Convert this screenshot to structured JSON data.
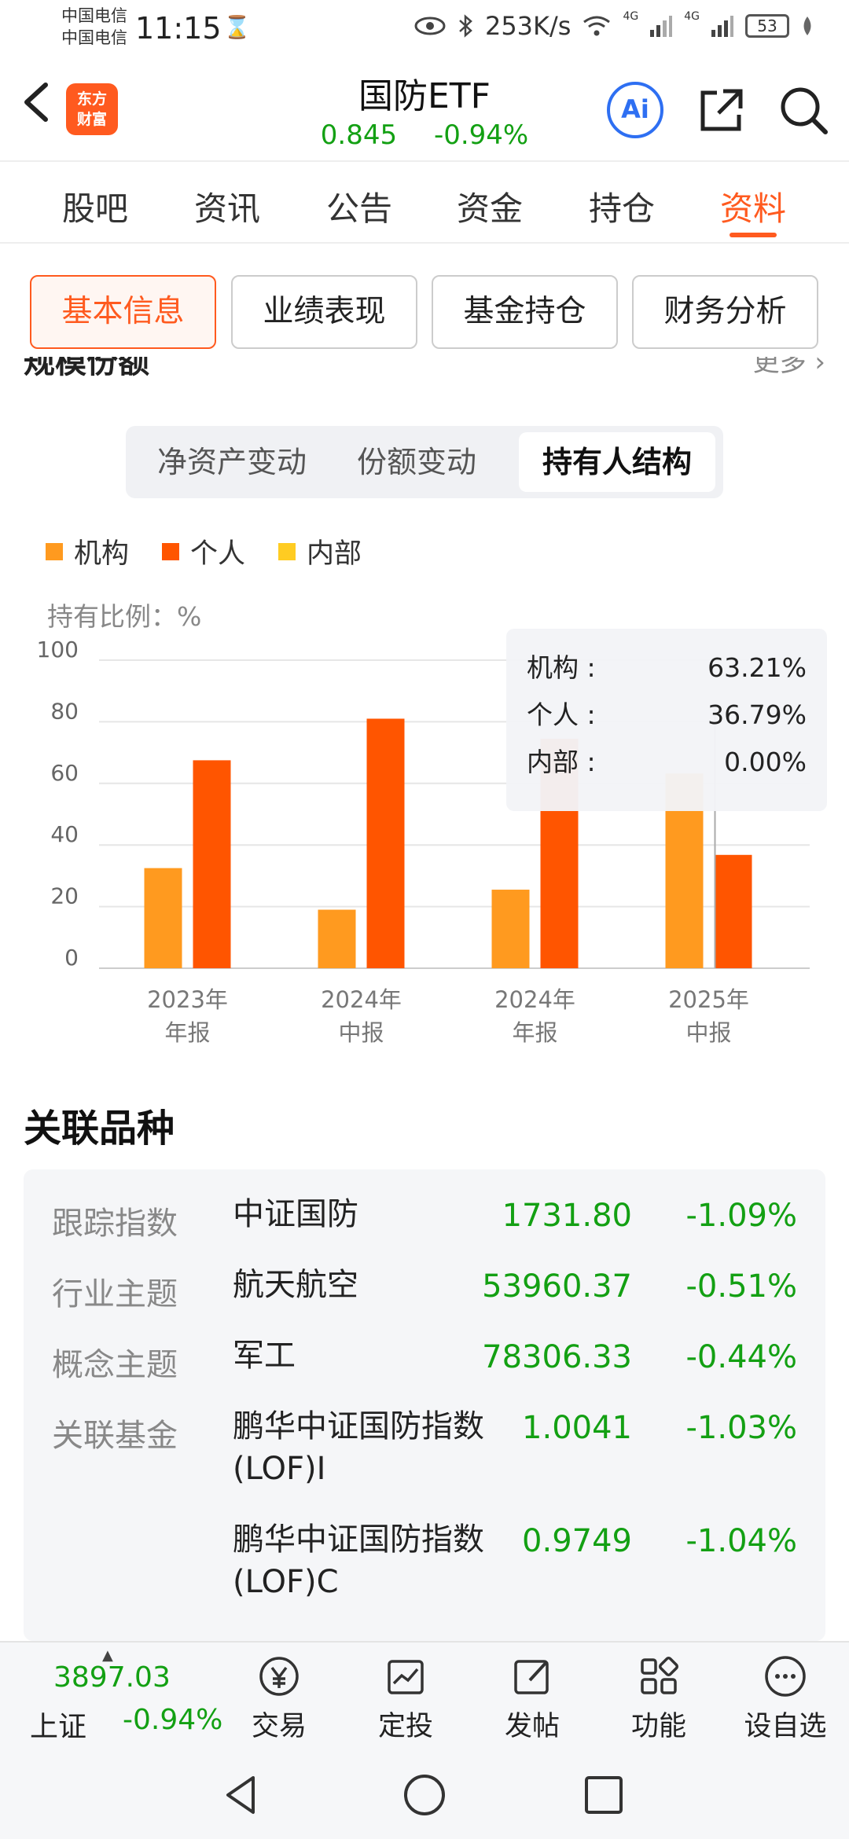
{
  "status_bar": {
    "carrier_1": "中国电信",
    "carrier_2": "中国电信",
    "time": "11:15",
    "hourglass": "⌛",
    "net_speed": "253K/s",
    "signal_1": "4G",
    "signal_2": "4G",
    "battery": "53"
  },
  "header": {
    "logo_line1": "东方",
    "logo_line2": "财富",
    "title": "国防ETF",
    "price": "0.845",
    "change": "-0.94%",
    "ai_label": "Ai"
  },
  "tabs": [
    {
      "label": "股吧"
    },
    {
      "label": "资讯"
    },
    {
      "label": "公告"
    },
    {
      "label": "资金"
    },
    {
      "label": "持仓"
    },
    {
      "label": "资料"
    }
  ],
  "sub_buttons": [
    {
      "label": "基本信息"
    },
    {
      "label": "业绩表现"
    },
    {
      "label": "基金持仓"
    },
    {
      "label": "财务分析"
    }
  ],
  "section": {
    "title": "规模份额",
    "more": "更多"
  },
  "segments": [
    {
      "label": "净资产变动"
    },
    {
      "label": "份额变动"
    },
    {
      "label": "持有人结构"
    }
  ],
  "chart_data": {
    "type": "bar",
    "ylabel": "持有比例：%",
    "ylim": [
      0,
      100
    ],
    "yticks": [
      "100",
      "80",
      "60",
      "40",
      "20",
      "0"
    ],
    "categories": [
      {
        "line1": "2023年",
        "line2": "年报"
      },
      {
        "line1": "2024年",
        "line2": "中报"
      },
      {
        "line1": "2024年",
        "line2": "年报"
      },
      {
        "line1": "2025年",
        "line2": "中报"
      }
    ],
    "series": [
      {
        "name": "机构",
        "color": "#ff9a1f",
        "values": [
          32.5,
          19,
          25.5,
          63.21
        ]
      },
      {
        "name": "个人",
        "color": "#ff5500",
        "values": [
          67.5,
          81,
          74.5,
          36.79
        ]
      },
      {
        "name": "内部",
        "color": "#ffcc22",
        "values": [
          0,
          0,
          0,
          0
        ]
      }
    ],
    "grid": true,
    "legend": "top-left"
  },
  "tooltip": [
    {
      "label": "机构 :",
      "value": "63.21%"
    },
    {
      "label": "个人 :",
      "value": "36.79%"
    },
    {
      "label": "内部 :",
      "value": "0.00%"
    }
  ],
  "related": {
    "title": "关联品种",
    "rows": [
      {
        "label": "跟踪指数",
        "name": "中证国防",
        "value": "1731.80",
        "change": "-1.09%"
      },
      {
        "label": "行业主题",
        "name": "航天航空",
        "value": "53960.37",
        "change": "-0.51%"
      },
      {
        "label": "概念主题",
        "name": "军工",
        "value": "78306.33",
        "change": "-0.44%"
      },
      {
        "label": "关联基金",
        "name": "鹏华中证国防指数(LOF)I",
        "value": "1.0041",
        "change": "-1.03%"
      },
      {
        "label": "",
        "name": "鹏华中证国防指数(LOF)C",
        "value": "0.9749",
        "change": "-1.04%"
      }
    ]
  },
  "bottom_bar": {
    "index_value": "3897.03",
    "index_name": "上证",
    "index_change": "-0.94%",
    "items": [
      {
        "label": "交易",
        "icon": "trade-yen-icon"
      },
      {
        "label": "定投",
        "icon": "invest-chart-icon"
      },
      {
        "label": "发帖",
        "icon": "post-edit-icon"
      },
      {
        "label": "功能",
        "icon": "grid-apps-icon"
      },
      {
        "label": "设自选",
        "icon": "more-dots-icon"
      }
    ]
  }
}
